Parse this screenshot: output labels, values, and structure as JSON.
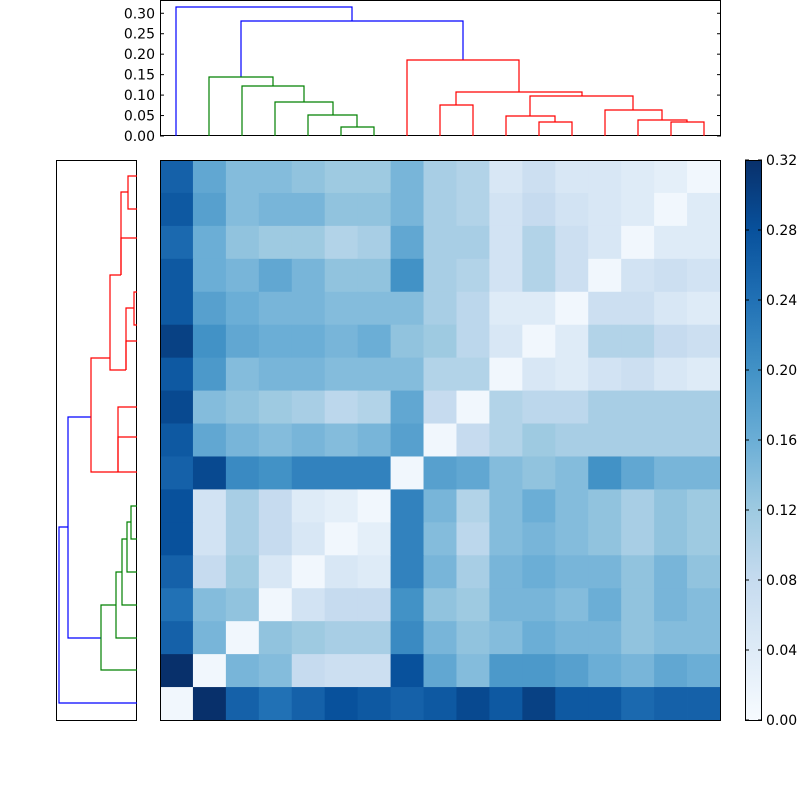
{
  "chart_data": {
    "type": "heatmap",
    "title": "",
    "n": 17,
    "color_scale": {
      "min": 0.0,
      "max": 0.32,
      "low_color": "#f7fbff",
      "high_color": "#08306b"
    },
    "colorbar": {
      "ticks": [
        "0.00",
        "0.04",
        "0.08",
        "0.12",
        "0.16",
        "0.20",
        "0.24",
        "0.28",
        "0.32"
      ],
      "range": [
        0.0,
        0.32
      ]
    },
    "top_dendrogram": {
      "ylim": [
        0,
        0.33
      ],
      "ticks": [
        "0.00",
        "0.05",
        "0.10",
        "0.15",
        "0.20",
        "0.25",
        "0.30"
      ],
      "cluster_colors": {
        "root": "#0000ff",
        "green": "#008000",
        "red": "#ff0000"
      }
    },
    "left_dendrogram": {
      "cluster_colors": {
        "root": "#0000ff",
        "green": "#008000",
        "red": "#ff0000"
      }
    },
    "matrix": [
      [
        0.26,
        0.17,
        0.14,
        0.14,
        0.13,
        0.12,
        0.12,
        0.15,
        0.11,
        0.1,
        0.05,
        0.07,
        0.05,
        0.05,
        0.04,
        0.03,
        0.01
      ],
      [
        0.27,
        0.18,
        0.14,
        0.15,
        0.15,
        0.13,
        0.13,
        0.15,
        0.11,
        0.1,
        0.06,
        0.08,
        0.06,
        0.05,
        0.04,
        0.01,
        0.04
      ],
      [
        0.25,
        0.16,
        0.13,
        0.12,
        0.12,
        0.1,
        0.11,
        0.17,
        0.11,
        0.11,
        0.06,
        0.1,
        0.07,
        0.05,
        0.01,
        0.04,
        0.04
      ],
      [
        0.27,
        0.16,
        0.15,
        0.17,
        0.15,
        0.13,
        0.13,
        0.2,
        0.11,
        0.1,
        0.06,
        0.1,
        0.07,
        0.01,
        0.06,
        0.07,
        0.06
      ],
      [
        0.27,
        0.18,
        0.16,
        0.15,
        0.15,
        0.14,
        0.14,
        0.14,
        0.11,
        0.09,
        0.04,
        0.04,
        0.01,
        0.07,
        0.07,
        0.05,
        0.04
      ],
      [
        0.3,
        0.2,
        0.17,
        0.16,
        0.16,
        0.15,
        0.16,
        0.13,
        0.12,
        0.09,
        0.05,
        0.01,
        0.04,
        0.1,
        0.1,
        0.08,
        0.07
      ],
      [
        0.27,
        0.19,
        0.14,
        0.15,
        0.15,
        0.14,
        0.14,
        0.14,
        0.1,
        0.1,
        0.01,
        0.05,
        0.04,
        0.06,
        0.07,
        0.05,
        0.04
      ],
      [
        0.29,
        0.14,
        0.13,
        0.12,
        0.11,
        0.09,
        0.1,
        0.17,
        0.08,
        0.01,
        0.1,
        0.09,
        0.09,
        0.11,
        0.11,
        0.11,
        0.11
      ],
      [
        0.27,
        0.17,
        0.15,
        0.14,
        0.15,
        0.14,
        0.15,
        0.18,
        0.01,
        0.08,
        0.1,
        0.12,
        0.11,
        0.11,
        0.11,
        0.11,
        0.11
      ],
      [
        0.26,
        0.29,
        0.21,
        0.2,
        0.22,
        0.22,
        0.22,
        0.01,
        0.18,
        0.17,
        0.14,
        0.13,
        0.14,
        0.2,
        0.17,
        0.15,
        0.15
      ],
      [
        0.28,
        0.06,
        0.11,
        0.08,
        0.04,
        0.03,
        0.01,
        0.22,
        0.15,
        0.1,
        0.14,
        0.16,
        0.14,
        0.13,
        0.11,
        0.13,
        0.12
      ],
      [
        0.28,
        0.06,
        0.11,
        0.08,
        0.05,
        0.01,
        0.03,
        0.22,
        0.14,
        0.09,
        0.14,
        0.15,
        0.14,
        0.13,
        0.11,
        0.13,
        0.12
      ],
      [
        0.26,
        0.08,
        0.12,
        0.05,
        0.01,
        0.05,
        0.04,
        0.22,
        0.15,
        0.11,
        0.15,
        0.16,
        0.15,
        0.15,
        0.13,
        0.15,
        0.13
      ],
      [
        0.24,
        0.14,
        0.13,
        0.01,
        0.06,
        0.08,
        0.08,
        0.2,
        0.13,
        0.12,
        0.15,
        0.15,
        0.14,
        0.16,
        0.13,
        0.15,
        0.14
      ],
      [
        0.26,
        0.15,
        0.01,
        0.13,
        0.12,
        0.11,
        0.11,
        0.21,
        0.15,
        0.13,
        0.14,
        0.16,
        0.15,
        0.15,
        0.13,
        0.14,
        0.14
      ],
      [
        0.32,
        0.01,
        0.15,
        0.14,
        0.08,
        0.07,
        0.07,
        0.28,
        0.17,
        0.14,
        0.19,
        0.19,
        0.18,
        0.16,
        0.15,
        0.17,
        0.16
      ],
      [
        0.01,
        0.32,
        0.26,
        0.24,
        0.26,
        0.28,
        0.27,
        0.26,
        0.27,
        0.29,
        0.27,
        0.3,
        0.27,
        0.27,
        0.25,
        0.26,
        0.26
      ]
    ]
  }
}
